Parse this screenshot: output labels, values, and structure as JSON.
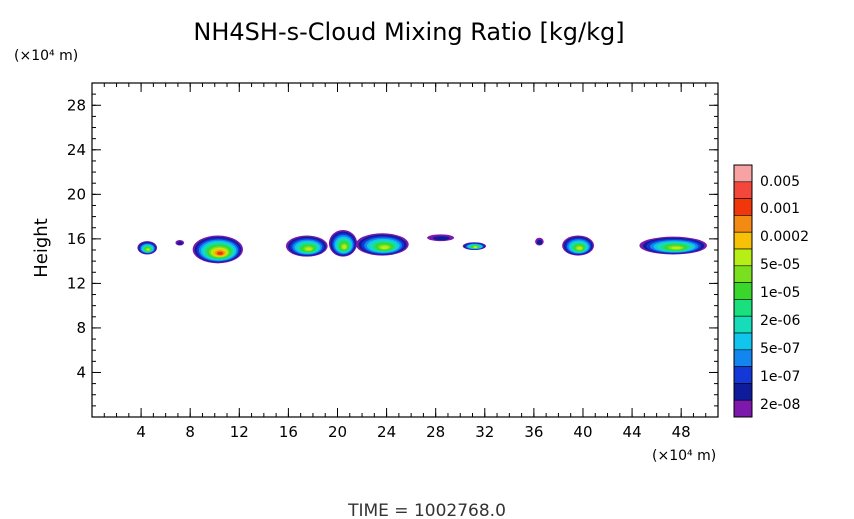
{
  "chart_data": {
    "type": "heatmap",
    "title": "NH4SH-s-Cloud Mixing Ratio [kg/kg]",
    "xlabel": "",
    "ylabel": "Height",
    "x_unit": "(×10⁴ m)",
    "y_unit": "(×10⁴ m)",
    "xlim": [
      0,
      51
    ],
    "ylim": [
      0,
      30
    ],
    "xticks": [
      4,
      8,
      12,
      16,
      20,
      24,
      28,
      32,
      36,
      40,
      44,
      48
    ],
    "yticks": [
      4,
      8,
      12,
      16,
      20,
      24,
      28
    ],
    "footer": "TIME = 1002768.0",
    "colorbar": {
      "labels": [
        "0.005",
        "0.001",
        "0.0002",
        "5e-05",
        "1e-05",
        "2e-06",
        "5e-07",
        "1e-07",
        "2e-08"
      ],
      "colors_top_to_bottom": [
        "#f7a3a3",
        "#f4473c",
        "#f0360a",
        "#f28a14",
        "#f7c107",
        "#b6ee16",
        "#7adf1f",
        "#39d72b",
        "#19e07c",
        "#16dcb8",
        "#10c6ec",
        "#1286ee",
        "#1438d8",
        "#0e1c9c",
        "#7c18ac"
      ]
    },
    "cloud_band": {
      "y_min": 13.8,
      "y_max": 16.8
    },
    "clouds": [
      {
        "x": [
          3.7,
          5.3
        ],
        "y": [
          14.6,
          15.8
        ],
        "max_level": "5e-05"
      },
      {
        "x": [
          6.8,
          7.5
        ],
        "y": [
          15.4,
          15.9
        ],
        "max_level": "1e-07"
      },
      {
        "x": [
          8.2,
          12.3
        ],
        "y": [
          13.8,
          16.3
        ],
        "max_level": "0.001"
      },
      {
        "x": [
          15.8,
          19.2
        ],
        "y": [
          14.4,
          16.3
        ],
        "max_level": "5e-05"
      },
      {
        "x": [
          19.3,
          21.6
        ],
        "y": [
          14.4,
          16.8
        ],
        "max_level": "5e-05"
      },
      {
        "x": [
          21.5,
          25.8
        ],
        "y": [
          14.5,
          16.5
        ],
        "max_level": "5e-05"
      },
      {
        "x": [
          27.3,
          29.5
        ],
        "y": [
          15.8,
          16.4
        ],
        "max_level": "1e-07"
      },
      {
        "x": [
          30.2,
          32.1
        ],
        "y": [
          15.0,
          15.7
        ],
        "max_level": "5e-05"
      },
      {
        "x": [
          36.1,
          36.8
        ],
        "y": [
          15.4,
          16.1
        ],
        "max_level": "1e-07"
      },
      {
        "x": [
          38.3,
          40.9
        ],
        "y": [
          14.5,
          16.3
        ],
        "max_level": "5e-05"
      },
      {
        "x": [
          44.6,
          50.1
        ],
        "y": [
          14.6,
          16.2
        ],
        "max_level": "5e-05"
      }
    ]
  }
}
